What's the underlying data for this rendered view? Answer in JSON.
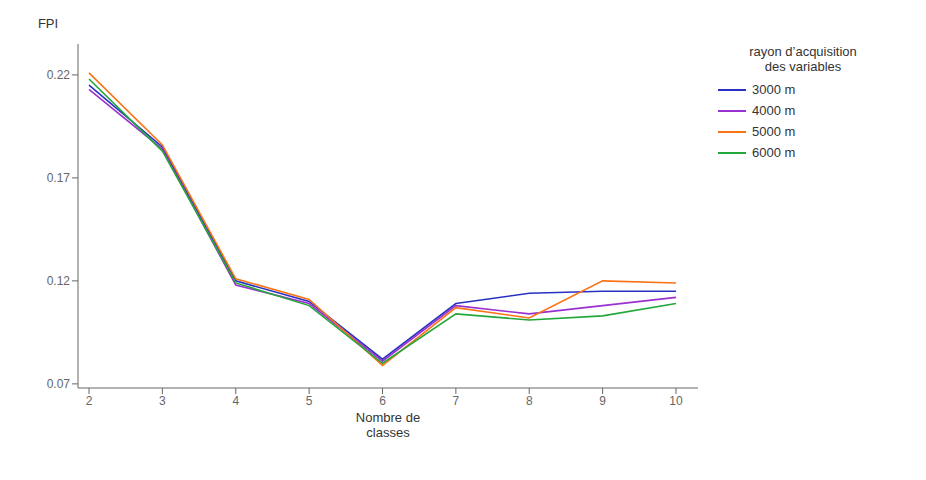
{
  "chart_data": {
    "type": "line",
    "xlabel": "Nombre de\nclasses",
    "ylabel": "FPI",
    "legend_title": "rayon d’acquisition\ndes variables",
    "x": [
      2,
      3,
      4,
      5,
      6,
      7,
      8,
      9,
      10
    ],
    "series": [
      {
        "name": "3000 m",
        "color": "#2832c2",
        "values": [
          0.215,
          0.185,
          0.12,
          0.11,
          0.082,
          0.109,
          0.114,
          0.115,
          0.115
        ]
      },
      {
        "name": "4000 m",
        "color": "#9b30d0",
        "values": [
          0.213,
          0.184,
          0.118,
          0.109,
          0.081,
          0.108,
          0.104,
          0.108,
          0.112
        ]
      },
      {
        "name": "5000 m",
        "color": "#f97316",
        "values": [
          0.221,
          0.186,
          0.121,
          0.111,
          0.079,
          0.107,
          0.102,
          0.12,
          0.119
        ]
      },
      {
        "name": "6000 m",
        "color": "#22a83a",
        "values": [
          0.218,
          0.183,
          0.119,
          0.108,
          0.08,
          0.104,
          0.101,
          0.103,
          0.109
        ]
      }
    ],
    "xlim": [
      1.85,
      10.3
    ],
    "xticks": [
      2,
      3,
      4,
      5,
      6,
      7,
      8,
      9,
      10
    ],
    "ylim": [
      0.068,
      0.235
    ],
    "yticks": [
      0.07,
      0.12,
      0.17,
      0.22
    ],
    "grid": false,
    "legend": "right"
  }
}
